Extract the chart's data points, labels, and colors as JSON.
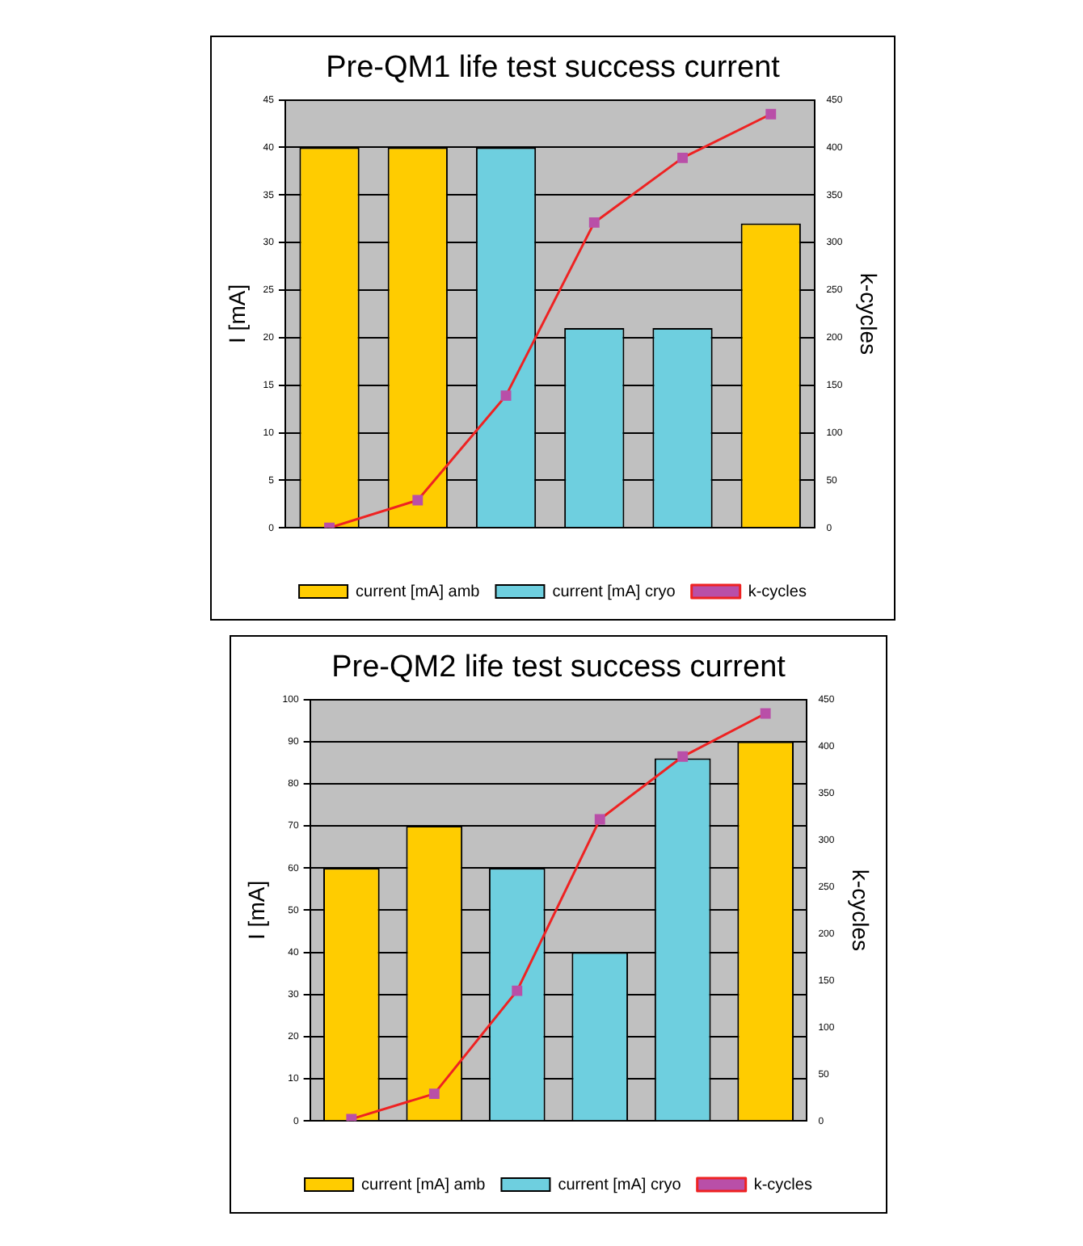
{
  "chart_data": [
    {
      "type": "bar",
      "title": "Pre-QM1 life test success current",
      "ylabel": "I [mA]",
      "y2label": "k-cycles",
      "categories": [
        null,
        null,
        null,
        null,
        null,
        null
      ],
      "series": [
        {
          "name": "current [mA] amb",
          "color": "#ffcc00",
          "values": [
            40,
            40,
            null,
            null,
            null,
            32
          ]
        },
        {
          "name": "current [mA] cryo",
          "color": "#6ecfdf",
          "values": [
            null,
            null,
            40,
            21,
            21,
            null
          ]
        },
        {
          "name": "k-cycles",
          "type": "line",
          "axis": "y2",
          "color": "#ee2222",
          "values": [
            0,
            29,
            139,
            321,
            389,
            435
          ]
        }
      ],
      "ylim": [
        0,
        45
      ],
      "yticks": [
        0,
        5,
        10,
        15,
        20,
        25,
        30,
        35,
        40,
        45
      ],
      "y2lim": [
        0,
        450
      ],
      "y2ticks": [
        0,
        50,
        100,
        150,
        200,
        250,
        300,
        350,
        400,
        450
      ],
      "grid": "y",
      "legend": "bottom",
      "marker": "square",
      "line_style": "solid"
    },
    {
      "type": "bar",
      "title": "Pre-QM2 life test success current",
      "ylabel": "I [mA]",
      "y2label": "k-cycles",
      "categories": [
        null,
        null,
        null,
        null,
        null,
        null
      ],
      "series": [
        {
          "name": "current [mA] amb",
          "color": "#ffcc00",
          "values": [
            60,
            70,
            null,
            null,
            null,
            90
          ]
        },
        {
          "name": "current [mA] cryo",
          "color": "#6ecfdf",
          "values": [
            null,
            null,
            60,
            40,
            86,
            null
          ]
        },
        {
          "name": "k-cycles",
          "type": "line",
          "axis": "y2",
          "color": "#ee2222",
          "values": [
            2,
            29,
            139,
            322,
            389,
            435
          ]
        }
      ],
      "ylim": [
        0,
        100
      ],
      "yticks": [
        0,
        10,
        20,
        30,
        40,
        50,
        60,
        70,
        80,
        90,
        100
      ],
      "y2lim": [
        0,
        450
      ],
      "y2ticks": [
        0,
        50,
        100,
        150,
        200,
        250,
        300,
        350,
        400,
        450
      ],
      "grid": "y",
      "legend": "bottom",
      "marker": "square",
      "line_style": "solid"
    }
  ]
}
